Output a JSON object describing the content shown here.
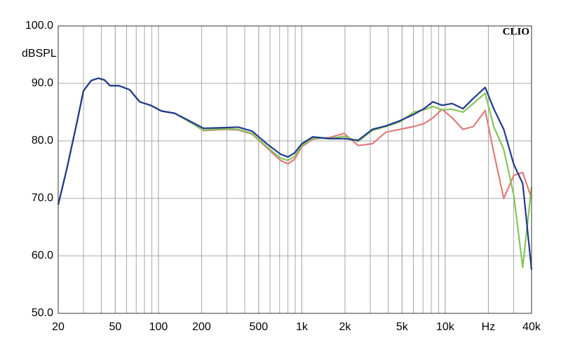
{
  "chart_data": {
    "type": "line",
    "y_label": "dBSPL",
    "annotation": "CLIO",
    "x_scale": "log",
    "grid": true,
    "x": [
      20,
      23,
      27,
      30,
      34,
      38,
      42,
      46,
      53,
      63,
      74,
      88,
      105,
      130,
      173,
      206,
      290,
      360,
      450,
      570,
      710,
      800,
      890,
      1000,
      1190,
      1570,
      1970,
      2470,
      3100,
      3850,
      4830,
      6030,
      7100,
      8200,
      9500,
      11200,
      13300,
      15700,
      19000,
      21800,
      25600,
      30100,
      34700,
      40000
    ],
    "series": [
      {
        "color": "#e07b7b",
        "values": [
          68.9,
          75.2,
          83.2,
          88.7,
          90.5,
          90.9,
          90.6,
          89.6,
          89.6,
          88.9,
          86.8,
          86.2,
          85.2,
          84.8,
          83.0,
          81.8,
          82.0,
          81.9,
          81.2,
          78.8,
          76.6,
          76.0,
          76.8,
          79.0,
          80.3,
          80.6,
          81.3,
          79.2,
          79.5,
          81.5,
          82.0,
          82.5,
          83.0,
          84.0,
          85.5,
          84.0,
          82.0,
          82.5,
          85.3,
          78.0,
          70.0,
          74.0,
          74.5,
          70.0
        ]
      },
      {
        "color": "#86c45a",
        "values": [
          68.9,
          75.2,
          83.2,
          88.7,
          90.5,
          90.9,
          90.6,
          89.6,
          89.6,
          88.9,
          86.8,
          86.2,
          85.2,
          84.8,
          83.0,
          81.9,
          82.1,
          82.0,
          81.3,
          79.0,
          77.0,
          76.6,
          77.3,
          79.2,
          80.5,
          80.4,
          80.8,
          79.9,
          81.8,
          82.5,
          83.3,
          85.0,
          85.4,
          86.0,
          85.4,
          85.5,
          85.0,
          86.5,
          88.3,
          82.5,
          78.5,
          70.5,
          58.0,
          72.0
        ]
      },
      {
        "color": "#1f3b8c",
        "values": [
          68.9,
          75.2,
          83.2,
          88.7,
          90.5,
          90.9,
          90.6,
          89.6,
          89.6,
          88.9,
          86.8,
          86.2,
          85.2,
          84.8,
          83.2,
          82.2,
          82.3,
          82.4,
          81.7,
          79.5,
          77.7,
          77.2,
          77.9,
          79.5,
          80.7,
          80.4,
          80.4,
          80.1,
          82.0,
          82.6,
          83.5,
          84.6,
          85.6,
          86.8,
          86.2,
          86.5,
          85.6,
          87.4,
          89.3,
          85.6,
          82.0,
          75.9,
          72.6,
          57.6
        ]
      }
    ],
    "xlim": [
      20,
      40000
    ],
    "ylim": [
      50,
      100
    ],
    "xticks": [
      20,
      50,
      100,
      200,
      500,
      {
        "value": 1000,
        "label": "1k"
      },
      {
        "value": 2000,
        "label": "2k"
      },
      {
        "value": 5000,
        "label": "5k"
      },
      {
        "value": 10000,
        "label": "10k"
      },
      {
        "value": 20000,
        "label": "Hz"
      },
      {
        "value": 40000,
        "label": "40k"
      }
    ],
    "yticks": [
      {
        "value": 50,
        "label": "50.0"
      },
      {
        "value": 60,
        "label": "60.0"
      },
      {
        "value": 70,
        "label": "70.0"
      },
      {
        "value": 80,
        "label": "80.0"
      },
      {
        "value": 90,
        "label": "90.0"
      },
      {
        "value": 100,
        "label": "100.0"
      }
    ]
  }
}
